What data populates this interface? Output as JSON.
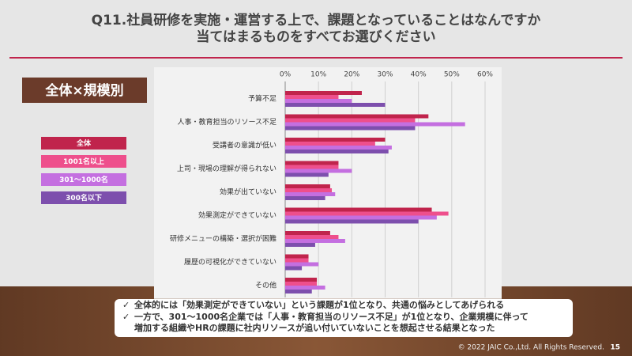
{
  "slide": {
    "title_lines": [
      "Q11.社員研修を実施・運営する上で、課題となっていることはなんですか",
      "当てはまるものをすべてお選びください"
    ],
    "badge": "全体×規模別",
    "notes": [
      "全体的には「効果測定ができていない」という課題が1位となり、共通の悩みとしてあげられる",
      "一方で、301～1000名企業では「人事・教育担当のリソース不足」が1位となり、企業規模に伴って",
      "増加する組織やHRの課題に社内リソースが追い付いていないことを想起させる結果となった"
    ],
    "footer": "© 2022 JAIC Co.,Ltd. All Rights Reserved.",
    "page_number": "15"
  },
  "chart_data": {
    "type": "hbar",
    "categories": [
      "予算不足",
      "人事・教育担当のリソース不足",
      "受講者の意識が低い",
      "上司・現場の理解が得られない",
      "効果が出ていない",
      "効果測定ができていない",
      "研修メニューの構築・選択が困難",
      "履歴の可視化ができていない",
      "その他"
    ],
    "series": [
      {
        "name": "全体",
        "color": "#c0244c",
        "values": [
          23,
          43,
          30,
          16,
          13.5,
          44,
          13.5,
          7,
          9.5
        ]
      },
      {
        "name": "1001名以上",
        "color": "#ee4f8c",
        "values": [
          16,
          39,
          27,
          16,
          14,
          49,
          16,
          7,
          9.5
        ]
      },
      {
        "name": "301～1000名",
        "color": "#c46fe0",
        "values": [
          20,
          54,
          32,
          20,
          15,
          45.5,
          18,
          10,
          12
        ]
      },
      {
        "name": "300名以下",
        "color": "#7d4fad",
        "values": [
          30,
          39,
          31,
          13,
          12,
          40,
          9,
          5,
          8
        ]
      }
    ],
    "xlim": [
      0,
      60
    ],
    "xticks": [
      {
        "value": 0,
        "label": "0%"
      },
      {
        "value": 10,
        "label": "10%"
      },
      {
        "value": 20,
        "label": "20%"
      },
      {
        "value": 30,
        "label": "30%"
      },
      {
        "value": 40,
        "label": "40%"
      },
      {
        "value": 50,
        "label": "50%"
      },
      {
        "value": 60,
        "label": "60%"
      }
    ],
    "grid": true
  }
}
